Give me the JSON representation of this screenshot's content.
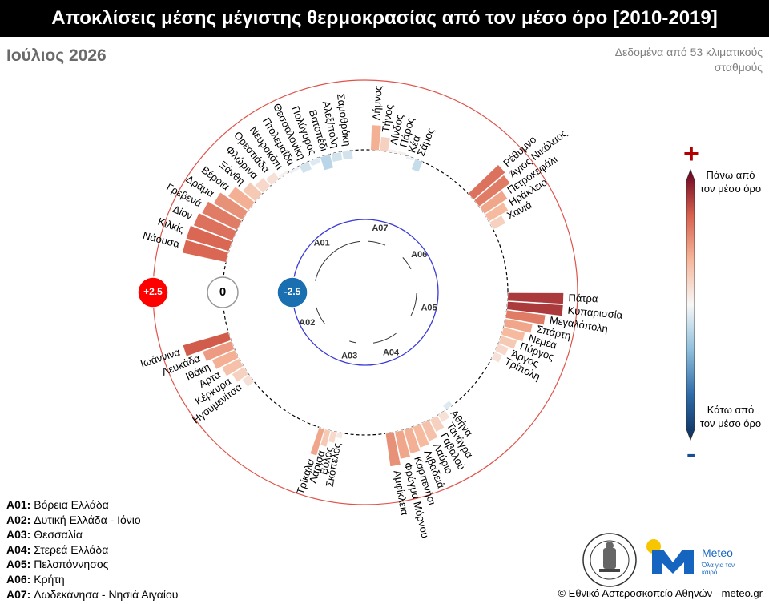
{
  "title": "Αποκλίσεις μέσης μέγιστης θερμοκρασίας από τον μέσο όρο [2010-2019]",
  "period": "Ιούλιος 2026",
  "source_note": "Δεδομένα από 53 κλιματικούς σταθμούς",
  "legend": [
    {
      "code": "A01:",
      "name": "Βόρεια Ελλάδα"
    },
    {
      "code": "A02:",
      "name": "Δυτική Ελλάδα - Ιόνιο"
    },
    {
      "code": "A03:",
      "name": "Θεσσαλία"
    },
    {
      "code": "A04:",
      "name": "Στερεά Ελλάδα"
    },
    {
      "code": "A05:",
      "name": "Πελοπόννησος"
    },
    {
      "code": "A06:",
      "name": "Κρήτη"
    },
    {
      "code": "A07:",
      "name": "Δωδεκάνησα - Νησιά Αιγαίου"
    }
  ],
  "colorbar": {
    "plus": "+",
    "minus": "-",
    "top_label": "Πάνω από τον μέσο όρο",
    "bottom_label": "Κάτω από τον μέσο όρο",
    "colors": [
      "#0b2f5c",
      "#2f6ba8",
      "#8fbfdc",
      "#f7f7f7",
      "#f6b79b",
      "#d6604d",
      "#67001f"
    ]
  },
  "copyright": "© Εθνικό Αστεροσκοπείο Αθηνών - meteo.gr",
  "meteo_name": "Meteo",
  "meteo_slogan": "Όλα για τον καιρό",
  "chart_data": {
    "type": "circular_bar",
    "scale_markers": [
      {
        "label": "+2.5",
        "value": 2.5,
        "color": "#ff0000"
      },
      {
        "label": "0",
        "value": 0,
        "color": "#ffffff"
      },
      {
        "label": "-2.5",
        "value": -2.5,
        "color": "#1a6fb0"
      }
    ],
    "groups": [
      {
        "code": "A01",
        "stations": [
          {
            "name": "Νάουσα",
            "value": 1.6
          },
          {
            "name": "Κιλκίς",
            "value": 1.6
          },
          {
            "name": "Δίον",
            "value": 1.5
          },
          {
            "name": "Γρεβενά",
            "value": 1.4
          },
          {
            "name": "Δράμα",
            "value": 1.2
          },
          {
            "name": "Βέροια",
            "value": 0.9
          },
          {
            "name": "Ξάνθη",
            "value": 0.6
          },
          {
            "name": "Φλώρινα",
            "value": 0.4
          },
          {
            "name": "Ορεστιάδα",
            "value": 0.3
          },
          {
            "name": "Νευροκόπι",
            "value": 0.1
          },
          {
            "name": "Πτολεμαΐδα",
            "value": -0.1
          },
          {
            "name": "Θεσσαλονίκη",
            "value": -0.3
          },
          {
            "name": "Πολύγυρος",
            "value": -0.2
          },
          {
            "name": "Βατοπέδι",
            "value": -0.5
          },
          {
            "name": "Αλεξ/πολη",
            "value": -0.3
          },
          {
            "name": "Σαμοθράκη",
            "value": -0.3
          }
        ]
      },
      {
        "code": "A02",
        "stations": [
          {
            "name": "Ηγουμενίτσα",
            "value": 0.3
          },
          {
            "name": "Κέρκυρα",
            "value": 0.5
          },
          {
            "name": "Άρτα",
            "value": 0.7
          },
          {
            "name": "Ιθάκη",
            "value": 0.9
          },
          {
            "name": "Λευκάδα",
            "value": 1.1
          },
          {
            "name": "Ιωάννινα",
            "value": 1.7
          }
        ]
      },
      {
        "code": "A03",
        "stations": [
          {
            "name": "Σκόπελος",
            "value": 0.2
          },
          {
            "name": "Βόλος",
            "value": 0.4
          },
          {
            "name": "Λάρισα",
            "value": 0.6
          },
          {
            "name": "Τρίκαλα",
            "value": 1.0
          }
        ]
      },
      {
        "code": "A04",
        "stations": [
          {
            "name": "Αθήνα",
            "value": -0.2
          },
          {
            "name": "Τανάγρα",
            "value": 0.3
          },
          {
            "name": "Γαβαλού",
            "value": 0.5
          },
          {
            "name": "Λαύριο",
            "value": 0.7
          },
          {
            "name": "Λιβαδειά",
            "value": 0.8
          },
          {
            "name": "Καρπενήσι",
            "value": 0.9
          },
          {
            "name": "Φράγμα Μόρνου",
            "value": 1.0
          },
          {
            "name": "Αμφίκλεια",
            "value": 1.2
          }
        ]
      },
      {
        "code": "A05",
        "stations": [
          {
            "name": "Πάτρα",
            "value": 2.0
          },
          {
            "name": "Κυπαρισσία",
            "value": 2.0
          },
          {
            "name": "Μεγαλόπολη",
            "value": 1.4
          },
          {
            "name": "Σπάρτη",
            "value": 1.0
          },
          {
            "name": "Νεμέα",
            "value": 0.8
          },
          {
            "name": "Πύργος",
            "value": 0.6
          },
          {
            "name": "Άργος",
            "value": 0.4
          },
          {
            "name": "Τρίπολη",
            "value": 0.3
          }
        ]
      },
      {
        "code": "A06",
        "stations": [
          {
            "name": "Ρέθυμνο",
            "value": 1.5
          },
          {
            "name": "Άγιος Νικόλαος",
            "value": 1.4
          },
          {
            "name": "Πετροκεφάλι",
            "value": 1.0
          },
          {
            "name": "Ηράκλειο",
            "value": 0.8
          },
          {
            "name": "Χανιά",
            "value": 0.5
          }
        ]
      },
      {
        "code": "A07",
        "stations": [
          {
            "name": "Λήμνος",
            "value": 0.9
          },
          {
            "name": "Τήνος",
            "value": 0.5
          },
          {
            "name": "Λίνδος",
            "value": 0.1
          },
          {
            "name": "Πάρος",
            "value": 0.1
          },
          {
            "name": "Κέα",
            "value": -0.1
          },
          {
            "name": "Σάμος",
            "value": -0.4
          }
        ]
      }
    ]
  }
}
